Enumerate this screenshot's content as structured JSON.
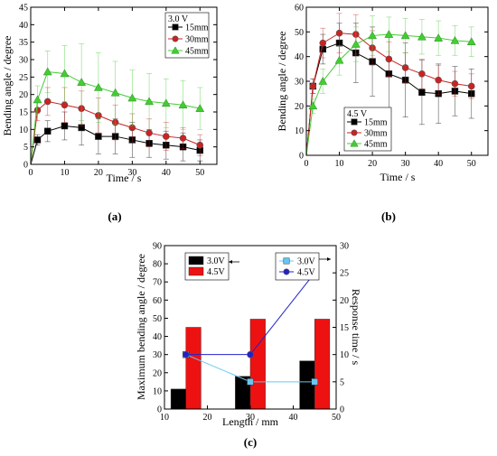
{
  "chart_data": [
    {
      "type": "line",
      "panel_label": "(a)",
      "xlabel": "Time / s",
      "ylabel": "Bending angle / degree",
      "xlim": [
        0,
        55
      ],
      "ylim": [
        0,
        45
      ],
      "xticks": [
        "0",
        "10",
        "20",
        "30",
        "40",
        "50"
      ],
      "yticks": [
        "0",
        "5",
        "10",
        "15",
        "20",
        "25",
        "30",
        "35",
        "40",
        "45"
      ],
      "legend_title": "3.0 V",
      "legend_position": "top-right",
      "x": [
        0,
        2,
        5,
        10,
        15,
        20,
        25,
        30,
        35,
        40,
        45,
        50
      ],
      "series": [
        {
          "name": "15mm",
          "marker": "square",
          "color": "#000000",
          "values": [
            0,
            7,
            9.5,
            11,
            10.5,
            8,
            8,
            7,
            6,
            5.5,
            5,
            4
          ],
          "errors": [
            0,
            1.5,
            3,
            4,
            5,
            5,
            5,
            5,
            4,
            4,
            4,
            3
          ]
        },
        {
          "name": "30mm",
          "marker": "circle",
          "color": "#cc2222",
          "values": [
            0,
            15.5,
            18,
            17,
            16,
            14,
            12,
            10.5,
            9,
            8,
            7.5,
            5.5
          ],
          "errors": [
            0,
            3,
            4,
            5,
            5,
            5,
            5,
            4,
            4,
            4,
            3,
            3
          ]
        },
        {
          "name": "45mm",
          "marker": "triangle",
          "color": "#44cc33",
          "values": [
            0,
            18.5,
            26.5,
            26,
            23.5,
            22,
            20.5,
            19,
            18,
            17.5,
            17,
            16
          ],
          "errors": [
            0,
            4,
            6,
            8,
            11,
            10,
            9,
            8,
            8,
            7,
            7,
            6
          ]
        }
      ]
    },
    {
      "type": "line",
      "panel_label": "(b)",
      "xlabel": "Time / s",
      "ylabel": "Bending angle / degree",
      "xlim": [
        0,
        55
      ],
      "ylim": [
        0,
        60
      ],
      "xticks": [
        "0",
        "10",
        "20",
        "30",
        "40",
        "50"
      ],
      "yticks": [
        "0",
        "10",
        "20",
        "30",
        "40",
        "50",
        "60"
      ],
      "legend_title": "4.5 V",
      "legend_position": "bottom-left",
      "x": [
        0,
        2,
        5,
        10,
        15,
        20,
        25,
        30,
        35,
        40,
        45,
        50
      ],
      "series": [
        {
          "name": "15mm",
          "marker": "square",
          "color": "#000000",
          "values": [
            0,
            28,
            43,
            45.5,
            41.5,
            38,
            33,
            30.5,
            25.5,
            25,
            26,
            25
          ],
          "errors": [
            0,
            3,
            6,
            8,
            12,
            14,
            15,
            15,
            13,
            12,
            10,
            10
          ]
        },
        {
          "name": "30mm",
          "marker": "circle",
          "color": "#cc2222",
          "values": [
            0,
            28,
            45.5,
            49.5,
            49,
            43.5,
            39,
            35.5,
            33,
            30.5,
            29,
            28
          ],
          "errors": [
            0,
            3,
            6,
            8,
            8,
            7,
            7,
            6,
            6,
            6,
            5,
            5
          ]
        },
        {
          "name": "45mm",
          "marker": "triangle",
          "color": "#44cc33",
          "values": [
            0,
            20,
            30,
            38.5,
            45,
            48.5,
            49,
            48.5,
            48,
            47.5,
            46.5,
            46
          ],
          "errors": [
            0,
            3,
            5,
            6,
            7,
            8,
            7,
            7,
            7,
            7,
            6,
            6
          ]
        }
      ]
    },
    {
      "type": "bar",
      "panel_label": "(c)",
      "xlabel": "Length / mm",
      "ylabel": "Maximum bending angle / degree",
      "y2label": "Response time / s",
      "xlim": [
        10,
        50
      ],
      "ylim": [
        0,
        90
      ],
      "y2lim": [
        0,
        30
      ],
      "xticks": [
        "10",
        "20",
        "30",
        "40",
        "50"
      ],
      "yticks": [
        "0",
        "10",
        "20",
        "30",
        "40",
        "50",
        "60",
        "70",
        "80",
        "90"
      ],
      "y2ticks": [
        "0",
        "5",
        "10",
        "15",
        "20",
        "25",
        "30"
      ],
      "categories": [
        15,
        30,
        45
      ],
      "bar_series": [
        {
          "name": "3.0V",
          "color": "#000000",
          "values": [
            11,
            18,
            26.5
          ]
        },
        {
          "name": "4.5V",
          "color": "#ee1111",
          "values": [
            45,
            49.5,
            49.5
          ]
        }
      ],
      "line_series": [
        {
          "name": "3.0V",
          "marker": "square",
          "color": "#66c8f0",
          "x": [
            15,
            30,
            45
          ],
          "values": [
            10,
            5,
            5
          ]
        },
        {
          "name": "4.5V",
          "marker": "circle",
          "color": "#2222cc",
          "x": [
            15,
            30,
            45
          ],
          "values": [
            10,
            10,
            25
          ]
        }
      ],
      "legend_positions": [
        "top-left",
        "top-right"
      ]
    }
  ]
}
